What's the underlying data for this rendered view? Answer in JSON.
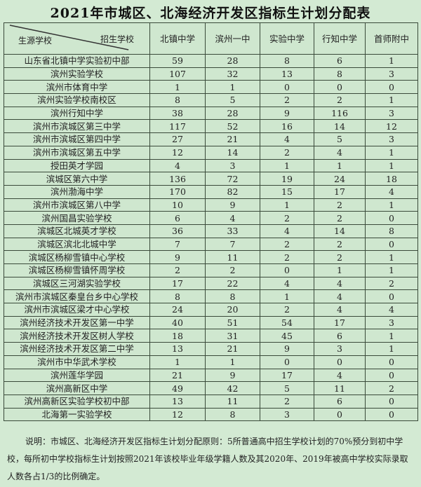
{
  "title": "2021年市城区、北海经济开发区指标生计划分配表",
  "corner": {
    "row_label": "生源学校",
    "col_label": "招生学校"
  },
  "columns": [
    "北镇中学",
    "滨州一中",
    "实验中学",
    "行知中学",
    "首师附中"
  ],
  "rows": [
    {
      "school": "山东省北镇中学实验初中部",
      "values": [
        "59",
        "28",
        "8",
        "6",
        "1"
      ]
    },
    {
      "school": "滨州实验学校",
      "values": [
        "107",
        "32",
        "13",
        "8",
        "3"
      ]
    },
    {
      "school": "滨州市体育中学",
      "values": [
        "1",
        "1",
        "0",
        "0",
        "0"
      ]
    },
    {
      "school": "滨州实验学校南校区",
      "values": [
        "8",
        "5",
        "2",
        "2",
        "1"
      ]
    },
    {
      "school": "滨州行知中学",
      "values": [
        "38",
        "28",
        "9",
        "116",
        "3"
      ]
    },
    {
      "school": "滨州市滨城区第三中学",
      "values": [
        "117",
        "52",
        "16",
        "14",
        "12"
      ]
    },
    {
      "school": "滨州市滨城区第四中学",
      "values": [
        "27",
        "21",
        "4",
        "5",
        "3"
      ]
    },
    {
      "school": "滨州市滨城区第五中学",
      "values": [
        "12",
        "14",
        "2",
        "4",
        "1"
      ]
    },
    {
      "school": "授田英才学园",
      "values": [
        "4",
        "3",
        "1",
        "1",
        "1"
      ]
    },
    {
      "school": "滨城区第六中学",
      "values": [
        "136",
        "72",
        "19",
        "24",
        "18"
      ]
    },
    {
      "school": "滨州渤海中学",
      "values": [
        "170",
        "82",
        "15",
        "17",
        "4"
      ]
    },
    {
      "school": "滨州市滨城区第八中学",
      "values": [
        "10",
        "9",
        "1",
        "2",
        "1"
      ]
    },
    {
      "school": "滨州国昌实验学校",
      "values": [
        "6",
        "4",
        "2",
        "2",
        "0"
      ]
    },
    {
      "school": "滨城区北城英才学校",
      "values": [
        "36",
        "33",
        "4",
        "14",
        "8"
      ]
    },
    {
      "school": "滨城区滨北北城中学",
      "values": [
        "7",
        "7",
        "2",
        "2",
        "0"
      ]
    },
    {
      "school": "滨城区杨柳雪镇中心学校",
      "values": [
        "9",
        "11",
        "2",
        "2",
        "1"
      ]
    },
    {
      "school": "滨城区杨柳雪镇怀周学校",
      "values": [
        "2",
        "2",
        "0",
        "1",
        "1"
      ]
    },
    {
      "school": "滨城区三河湖实验学校",
      "values": [
        "17",
        "22",
        "4",
        "4",
        "2"
      ]
    },
    {
      "school": "滨州市滨城区秦皇台乡中心学校",
      "values": [
        "8",
        "8",
        "1",
        "4",
        "0"
      ]
    },
    {
      "school": "滨州市滨城区梁才中心学校",
      "values": [
        "24",
        "20",
        "2",
        "4",
        "4"
      ]
    },
    {
      "school": "滨州经济技术开发区第一中学",
      "values": [
        "40",
        "51",
        "54",
        "17",
        "3"
      ]
    },
    {
      "school": "滨州经济技术开发区树人学校",
      "values": [
        "18",
        "31",
        "45",
        "6",
        "1"
      ]
    },
    {
      "school": "滨州经济技术开发区第二中学",
      "values": [
        "13",
        "21",
        "9",
        "3",
        "1"
      ]
    },
    {
      "school": "滨州市中华武术学校",
      "values": [
        "1",
        "1",
        "0",
        "0",
        "0"
      ]
    },
    {
      "school": "滨州莲华学园",
      "values": [
        "21",
        "9",
        "17",
        "4",
        "0"
      ]
    },
    {
      "school": "滨州高新区中学",
      "values": [
        "49",
        "42",
        "5",
        "11",
        "2"
      ]
    },
    {
      "school": "滨州高新区实验学校初中部",
      "values": [
        "13",
        "11",
        "2",
        "6",
        "0"
      ]
    },
    {
      "school": "北海第一实验学校",
      "values": [
        "12",
        "8",
        "3",
        "0",
        "0"
      ]
    }
  ],
  "note": "说明：市城区、北海经济开发区指标生计划分配原则：5所普通高中招生学校计划的70%预分到初中学校，每所初中学校指标生计划按照2021年该校毕业年级学籍人数及其2020年、2019年被高中学校实际录取人数各占1/3的比例确定。"
}
